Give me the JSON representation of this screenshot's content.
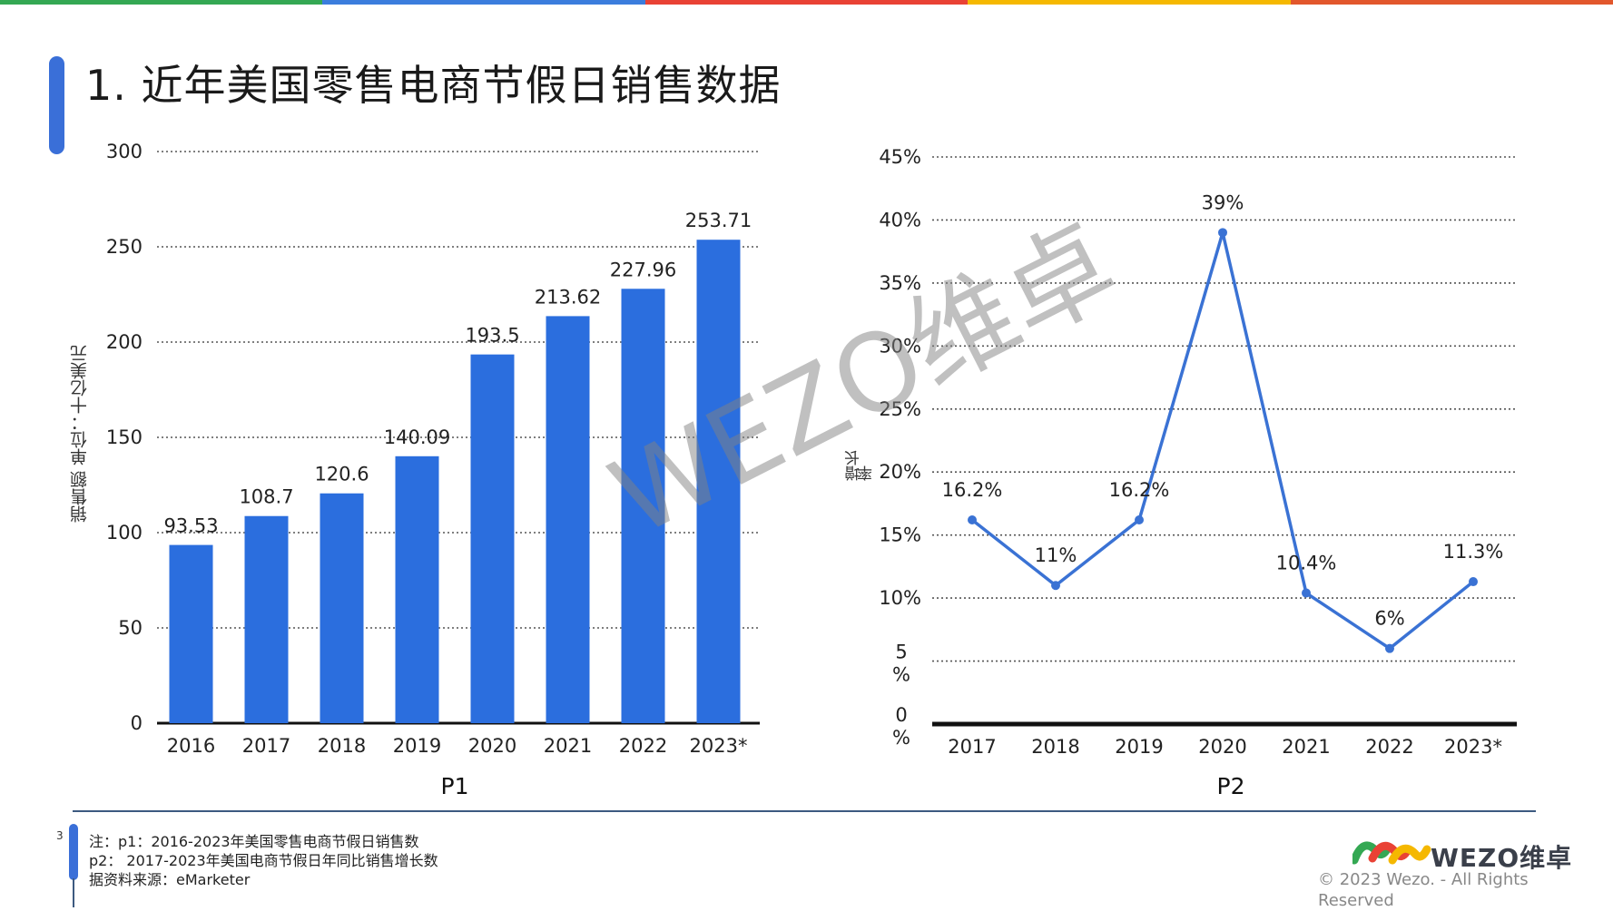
{
  "page": {
    "title": "1. 近年美国零售电商节假日销售数据",
    "page_number": "3",
    "watermark": "WEZO维卓"
  },
  "colors": {
    "bar": "#2b6ede",
    "line": "#3a72d4",
    "grid": "#555555",
    "title_accent": "#3a6fd8",
    "top_strip": [
      "#34a853",
      "#3b7ddd",
      "#e94235",
      "#f5b800",
      "#e2572c"
    ]
  },
  "chart_data": [
    {
      "type": "bar",
      "caption": "P1",
      "ylabel": "销售额 单位：十亿美元",
      "categories": [
        "2016",
        "2017",
        "2018",
        "2019",
        "2020",
        "2021",
        "2022",
        "2023*"
      ],
      "values": [
        93.53,
        108.7,
        120.6,
        140.09,
        193.5,
        213.62,
        227.96,
        253.71
      ],
      "value_labels": [
        "93.53",
        "108.7",
        "120.6",
        "140.09",
        "193.5",
        "213.62",
        "227.96",
        "253.71"
      ],
      "ylim": [
        0,
        300
      ],
      "yticks": [
        0,
        50,
        100,
        150,
        200,
        250,
        300
      ],
      "ytick_labels": [
        "0",
        "50",
        "100",
        "150",
        "200",
        "250",
        "300"
      ],
      "grid": true
    },
    {
      "type": "line",
      "caption": "P2",
      "ylabel": "增长率",
      "categories": [
        "2017",
        "2018",
        "2019",
        "2020",
        "2021",
        "2022",
        "2023*"
      ],
      "values": [
        16.2,
        11,
        16.2,
        39,
        10.4,
        6,
        11.3
      ],
      "value_labels": [
        "16.2%",
        "11%",
        "16.2%",
        "39%",
        "10.4%",
        "6%",
        "11.3%"
      ],
      "ylim": [
        0,
        45
      ],
      "yticks": [
        0,
        5,
        10,
        15,
        20,
        25,
        30,
        35,
        40,
        45
      ],
      "ytick_labels": [
        "0%",
        "5%",
        "10%",
        "15%",
        "20%",
        "25%",
        "30%",
        "35%",
        "40%",
        "45%"
      ],
      "grid": true
    }
  ],
  "notes": {
    "line1": "注：p1：2016-2023年美国零售电商节假日销售数",
    "line2": "p2：  2017-2023年美国电商节假日年同比销售增长数",
    "line3": "据资料来源：eMarketer"
  },
  "brand": {
    "logo_text": "WEZO维卓",
    "copyright": "© 2023 Wezo. - All Rights Reserved"
  }
}
